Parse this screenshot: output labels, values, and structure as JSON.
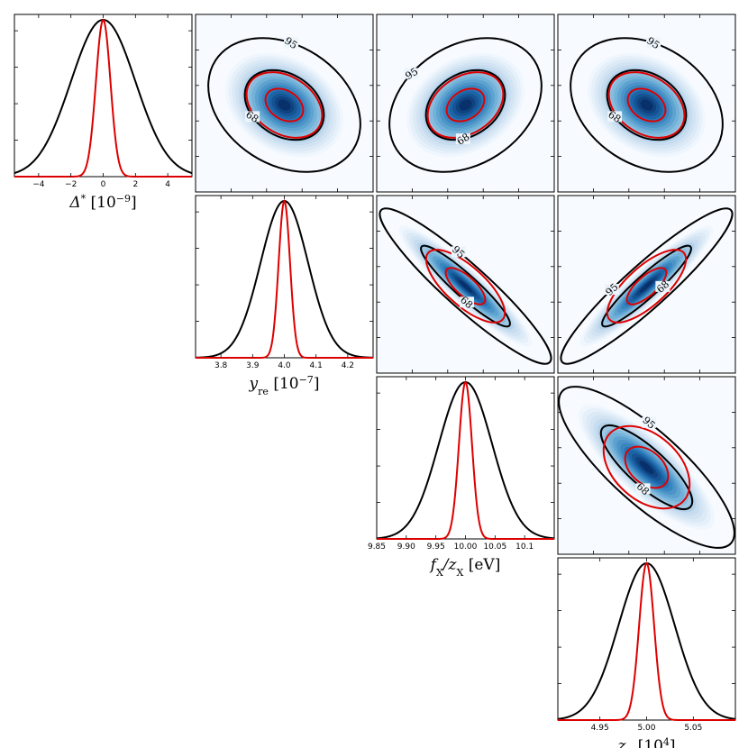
{
  "chart_data": {
    "type": "triangle-corner-plot",
    "parameters": [
      {
        "key": "delta",
        "label_main": "Δ",
        "label_sup": "*",
        "label_unit": "[10",
        "label_unit_sup": "−9",
        "label_unit_end": "]",
        "center": 0,
        "wide_sigma": 2.0,
        "narrow_sigma": 0.45,
        "xlim": [
          -5.5,
          5.5
        ],
        "ticks": [
          -4,
          -2,
          0,
          2,
          4
        ],
        "tick_labels": [
          "−4",
          "−2",
          "0",
          "2",
          "4"
        ]
      },
      {
        "key": "yre",
        "label_main": "y",
        "label_sub": "re",
        "label_unit": "[10",
        "label_unit_sup": "−7",
        "label_unit_end": "]",
        "center": 4.0,
        "wide_sigma": 0.075,
        "narrow_sigma": 0.018,
        "xlim": [
          3.72,
          4.28
        ],
        "ticks": [
          3.8,
          3.9,
          4.0,
          4.1,
          4.2
        ],
        "tick_labels": [
          "3.8",
          "3.9",
          "4.0",
          "4.1",
          "4.2"
        ]
      },
      {
        "key": "fx",
        "label_main": "f",
        "label_sub": "X",
        "label_mid": "/z",
        "label_sub2": "X",
        "label_unit": "[eV]",
        "center": 10.0,
        "wide_sigma": 0.045,
        "narrow_sigma": 0.011,
        "xlim": [
          9.85,
          10.15
        ],
        "ticks": [
          9.85,
          9.9,
          9.95,
          10.0,
          10.05,
          10.1
        ],
        "tick_labels": [
          "9.85",
          "9.90",
          "9.95",
          "10.00",
          "10.05",
          "10.1"
        ]
      },
      {
        "key": "zx",
        "label_main": "z",
        "label_sub": "X",
        "label_unit": "[10",
        "label_unit_sup": "4",
        "label_unit_end": "]",
        "center": 5.0,
        "wide_sigma": 0.03,
        "narrow_sigma": 0.008,
        "xlim": [
          4.905,
          5.095
        ],
        "ticks": [
          4.95,
          5.0,
          5.05
        ],
        "tick_labels": [
          "4.95",
          "5.00",
          "5.05"
        ]
      }
    ],
    "contour_levels": [
      "68",
      "95"
    ],
    "correlations": {
      "delta-yre": -0.45,
      "delta-fx": 0.45,
      "delta-zx": -0.45,
      "yre-fx": -0.97,
      "yre-zx": 0.95,
      "fx-zx": -0.85
    },
    "series": [
      {
        "color": "#000000"
      },
      {
        "color": "#dd0000"
      }
    ],
    "cmap": [
      "#f7fbff",
      "#c6dbef",
      "#6baed6",
      "#2171b5",
      "#08306b"
    ]
  }
}
